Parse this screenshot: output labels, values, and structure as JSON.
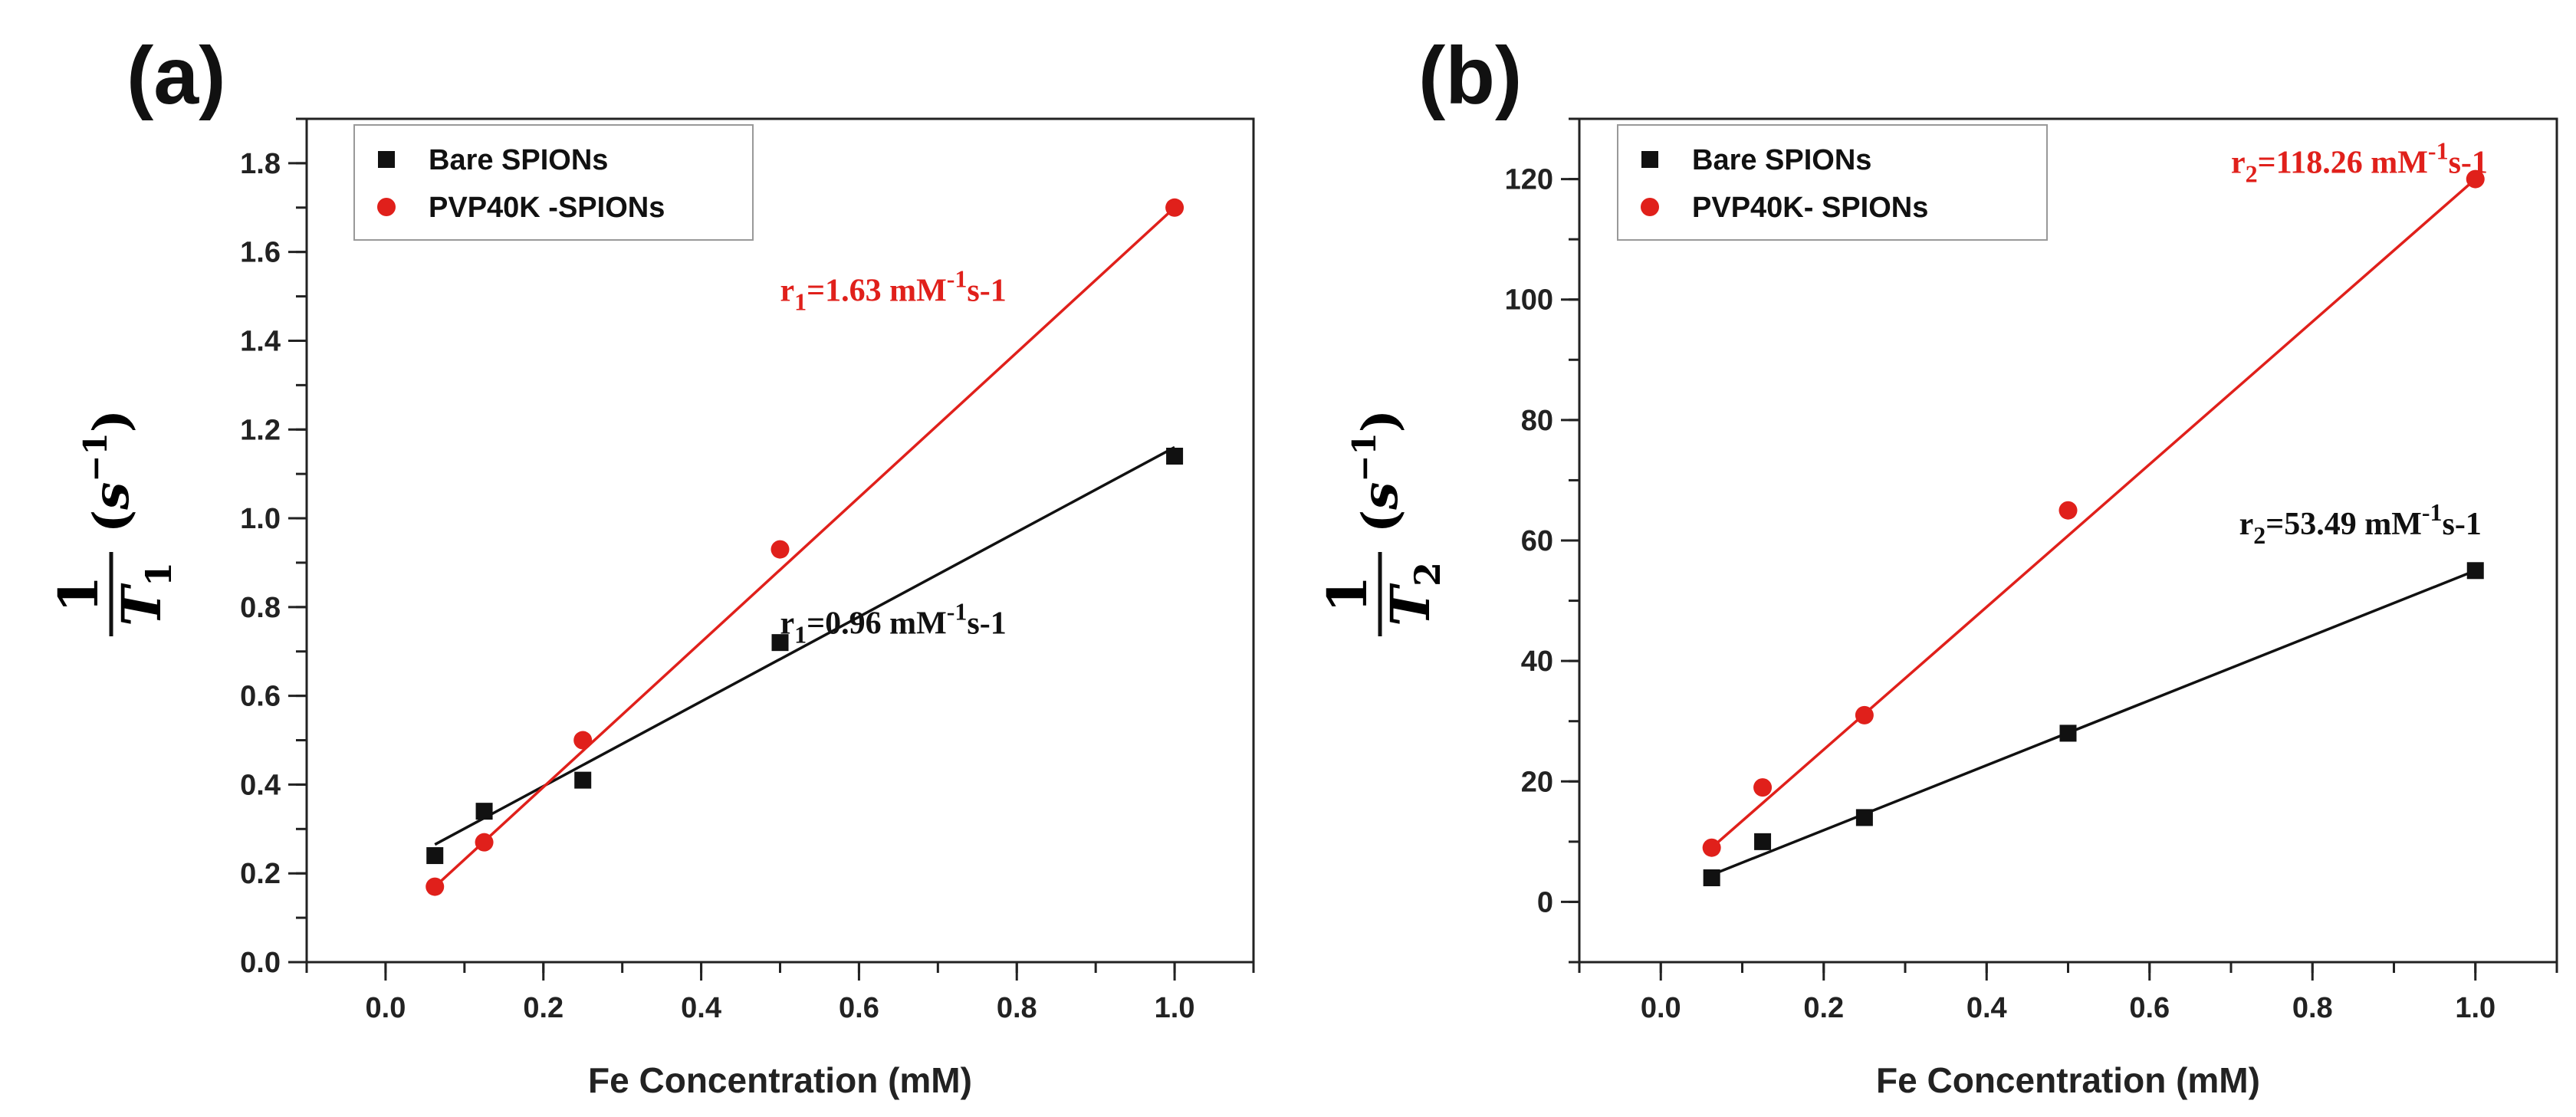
{
  "chart_data": [
    {
      "type": "scatter",
      "panel_label": "(a)",
      "xlabel": "Fe Concentration (mM)",
      "ylabel": {
        "numerator": "1",
        "denominator": "T",
        "denominator_sub": "1",
        "unit_open": "(",
        "unit_base": "s",
        "unit_sup": "−1",
        "unit_close": ")"
      },
      "xlim": [
        -0.1,
        1.1
      ],
      "ylim": [
        0.0,
        1.9
      ],
      "xticks": [
        0.0,
        0.2,
        0.4,
        0.6,
        0.8,
        1.0
      ],
      "xtick_labels": [
        "0.0",
        "0.2",
        "0.4",
        "0.6",
        "0.8",
        "1.0"
      ],
      "yticks": [
        0.0,
        0.2,
        0.4,
        0.6,
        0.8,
        1.0,
        1.2,
        1.4,
        1.6,
        1.8
      ],
      "ytick_labels": [
        "0.0",
        "0.2",
        "0.4",
        "0.6",
        "0.8",
        "1.0",
        "1.2",
        "1.4",
        "1.6",
        "1.8"
      ],
      "legend_position": "top-left",
      "series": [
        {
          "name": "Bare SPIONs",
          "marker": "square",
          "color": "#111111",
          "x": [
            0.0625,
            0.125,
            0.25,
            0.5,
            1.0
          ],
          "y": [
            0.24,
            0.34,
            0.41,
            0.72,
            1.14
          ],
          "fit": {
            "x": [
              0.0625,
              1.0
            ],
            "y": [
              0.265,
              1.16
            ]
          },
          "annotation": {
            "prefix": "r",
            "sub": "1",
            "mid": "=0.96 mM",
            "sup": "-1",
            "suffix": "s-1",
            "at_x": 0.5,
            "at_y": 0.74
          }
        },
        {
          "name": "PVP40K -SPIONs",
          "marker": "circle",
          "color": "#e0201b",
          "x": [
            0.0625,
            0.125,
            0.25,
            0.5,
            1.0
          ],
          "y": [
            0.17,
            0.27,
            0.5,
            0.93,
            1.7
          ],
          "fit": {
            "x": [
              0.0625,
              1.0
            ],
            "y": [
              0.17,
              1.7
            ]
          },
          "annotation": {
            "prefix": "r",
            "sub": "1",
            "mid": "=1.63 mM",
            "sup": "-1",
            "suffix": "s-1",
            "at_x": 0.5,
            "at_y": 1.49
          }
        }
      ]
    },
    {
      "type": "scatter",
      "panel_label": "(b)",
      "xlabel": "Fe Concentration (mM)",
      "ylabel": {
        "numerator": "1",
        "denominator": "T",
        "denominator_sub": "2",
        "unit_open": "(",
        "unit_base": "s",
        "unit_sup": "−1",
        "unit_close": ")"
      },
      "xlim": [
        -0.1,
        1.1
      ],
      "ylim": [
        -10,
        130
      ],
      "xticks": [
        0.0,
        0.2,
        0.4,
        0.6,
        0.8,
        1.0
      ],
      "xtick_labels": [
        "0.0",
        "0.2",
        "0.4",
        "0.6",
        "0.8",
        "1.0"
      ],
      "yticks": [
        0,
        20,
        40,
        60,
        80,
        100,
        120
      ],
      "ytick_labels": [
        "0",
        "20",
        "40",
        "60",
        "80",
        "100",
        "120"
      ],
      "legend_position": "top-left",
      "series": [
        {
          "name": "Bare SPIONs",
          "marker": "square",
          "color": "#111111",
          "x": [
            0.0625,
            0.125,
            0.25,
            0.5,
            1.0
          ],
          "y": [
            4,
            10,
            14,
            28,
            55
          ],
          "fit": {
            "x": [
              0.0625,
              1.0
            ],
            "y": [
              4.5,
              55
            ]
          },
          "annotation": {
            "prefix": "r",
            "sub": "2",
            "mid": "=53.49 mM",
            "sup": "-1",
            "suffix": "s-1",
            "at_x": 0.71,
            "at_y": 61
          }
        },
        {
          "name": "PVP40K- SPIONs",
          "marker": "circle",
          "color": "#e0201b",
          "x": [
            0.0625,
            0.125,
            0.25,
            0.5,
            1.0
          ],
          "y": [
            9,
            19,
            31,
            65,
            120
          ],
          "fit": {
            "x": [
              0.0625,
              1.0
            ],
            "y": [
              9,
              120
            ]
          },
          "annotation": {
            "prefix": "r",
            "sub": "2",
            "mid": "=118.26 mM",
            "sup": "-1",
            "suffix": "s-1",
            "at_x": 0.7,
            "at_y": 121
          }
        }
      ]
    }
  ]
}
